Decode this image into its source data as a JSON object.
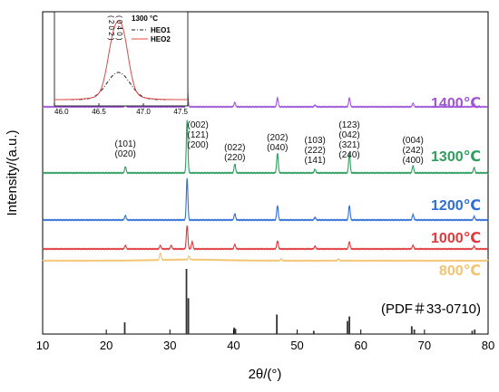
{
  "chart_data": {
    "type": "line",
    "xlabel": "2θ/(°)",
    "ylabel": "Intensity/(a.u.)",
    "xlim": [
      10,
      80
    ],
    "xticks": [
      "10",
      "20",
      "30",
      "40",
      "50",
      "60",
      "70",
      "80"
    ],
    "series": [
      {
        "name": "1400℃",
        "color": "#9e55d8",
        "peaks": [
          {
            "x": 23.0,
            "h": 3
          },
          {
            "x": 32.7,
            "h": 24
          },
          {
            "x": 40.2,
            "h": 5
          },
          {
            "x": 46.9,
            "h": 10
          },
          {
            "x": 52.8,
            "h": 2
          },
          {
            "x": 58.2,
            "h": 10
          },
          {
            "x": 68.2,
            "h": 4
          },
          {
            "x": 77.8,
            "h": 3
          }
        ]
      },
      {
        "name": "1300℃",
        "color": "#2e9e5e",
        "peaks": [
          {
            "x": 23.0,
            "h": 7
          },
          {
            "x": 32.7,
            "h": 58
          },
          {
            "x": 40.2,
            "h": 10
          },
          {
            "x": 46.9,
            "h": 22
          },
          {
            "x": 52.8,
            "h": 4
          },
          {
            "x": 58.2,
            "h": 22
          },
          {
            "x": 68.2,
            "h": 8
          },
          {
            "x": 77.8,
            "h": 6
          }
        ]
      },
      {
        "name": "1200℃",
        "color": "#2e6fd6",
        "peaks": [
          {
            "x": 23.0,
            "h": 5
          },
          {
            "x": 32.7,
            "h": 46
          },
          {
            "x": 40.2,
            "h": 7
          },
          {
            "x": 46.9,
            "h": 16
          },
          {
            "x": 52.8,
            "h": 3
          },
          {
            "x": 58.2,
            "h": 16
          },
          {
            "x": 68.2,
            "h": 6
          },
          {
            "x": 77.8,
            "h": 4
          }
        ]
      },
      {
        "name": "1000℃",
        "color": "#e0383b",
        "peaks": [
          {
            "x": 23.0,
            "h": 4
          },
          {
            "x": 28.5,
            "h": 4
          },
          {
            "x": 30.2,
            "h": 4
          },
          {
            "x": 32.7,
            "h": 26
          },
          {
            "x": 33.5,
            "h": 8
          },
          {
            "x": 40.2,
            "h": 5
          },
          {
            "x": 46.9,
            "h": 9
          },
          {
            "x": 52.8,
            "h": 3
          },
          {
            "x": 58.2,
            "h": 8
          },
          {
            "x": 68.2,
            "h": 4
          },
          {
            "x": 77.8,
            "h": 3
          }
        ]
      },
      {
        "name": "800℃",
        "color": "#f2c46e",
        "peaks": [
          {
            "x": 28.5,
            "h": 8
          },
          {
            "x": 33.0,
            "h": 4
          },
          {
            "x": 47.5,
            "h": 2
          },
          {
            "x": 56.5,
            "h": 2
          }
        ]
      }
    ],
    "reference": {
      "name": "(PDF＃33-0710)",
      "color": "#333333",
      "sticks": [
        {
          "x": 22.9,
          "h": 0.18
        },
        {
          "x": 32.6,
          "h": 1.0
        },
        {
          "x": 32.9,
          "h": 0.55
        },
        {
          "x": 40.1,
          "h": 0.1
        },
        {
          "x": 40.3,
          "h": 0.08
        },
        {
          "x": 46.8,
          "h": 0.3
        },
        {
          "x": 52.6,
          "h": 0.05
        },
        {
          "x": 57.9,
          "h": 0.2
        },
        {
          "x": 58.2,
          "h": 0.27
        },
        {
          "x": 68.0,
          "h": 0.12
        },
        {
          "x": 68.4,
          "h": 0.07
        },
        {
          "x": 77.5,
          "h": 0.05
        },
        {
          "x": 77.9,
          "h": 0.07
        }
      ]
    },
    "peak_annotations": [
      {
        "x": 23.0,
        "lines": [
          "(101)",
          "(020)"
        ]
      },
      {
        "x": 32.7,
        "lines": [
          "(002)",
          "(121)",
          "(200)"
        ]
      },
      {
        "x": 40.2,
        "lines": [
          "(022)",
          "(220)"
        ]
      },
      {
        "x": 46.9,
        "lines": [
          "(202)",
          "(040)"
        ]
      },
      {
        "x": 52.8,
        "lines": [
          "(103)",
          "(222)",
          "(141)"
        ]
      },
      {
        "x": 58.2,
        "lines": [
          "(123)",
          "(042)",
          "(321)",
          "(240)"
        ]
      },
      {
        "x": 68.2,
        "lines": [
          "(004)",
          "(242)",
          "(400)"
        ]
      }
    ],
    "inset": {
      "title": "1300 °C",
      "xlim": [
        46.0,
        47.5
      ],
      "xticks": [
        "46.0",
        "46.5",
        "47.0",
        "47.5"
      ],
      "peak_labels": [
        "( 2 0 2 )",
        "( 0 4 0 )"
      ],
      "series": [
        {
          "name": "HEO1",
          "style": "dash-dot",
          "color": "#222222"
        },
        {
          "name": "HEO2",
          "style": "solid",
          "color": "#e04848"
        }
      ]
    }
  }
}
